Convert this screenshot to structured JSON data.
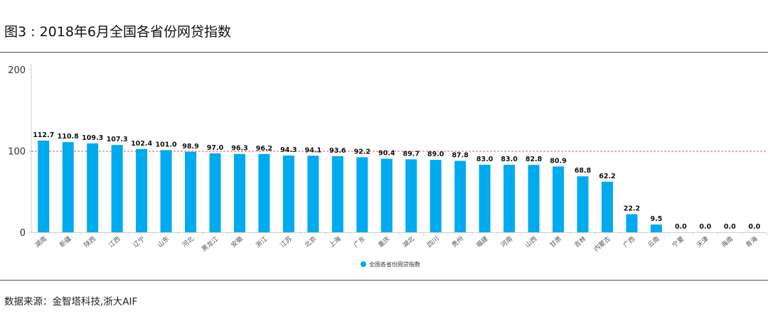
{
  "title": "图3 : 2018年6月全国各省份网贷指数",
  "source": "数据来源：金智塔科技,浙大AIF",
  "chart_data": {
    "type": "bar",
    "title": "图3 : 2018年6月全国各省份网贷指数",
    "xlabel": "",
    "ylabel": "",
    "ylim": [
      0,
      200
    ],
    "yticks": [
      "0",
      "100",
      "200"
    ],
    "reference_line": {
      "value": 100,
      "color": "#e05a5a",
      "style": "dashed"
    },
    "grid": false,
    "legend_position": "bottom-center",
    "bar_color": "#00aaef",
    "categories": [
      "湖南",
      "新疆",
      "陕西",
      "江西",
      "辽宁",
      "山东",
      "河北",
      "黑龙江",
      "安徽",
      "浙江",
      "江苏",
      "北京",
      "上海",
      "广东",
      "重庆",
      "湖北",
      "四川",
      "贵州",
      "福建",
      "河南",
      "山西",
      "甘肃",
      "吉林",
      "内蒙古",
      "广西",
      "云南",
      "宁夏",
      "天津",
      "海南",
      "青海"
    ],
    "series": [
      {
        "name": "全国各省份网贷指数",
        "values": [
          112.7,
          110.8,
          109.3,
          107.3,
          102.4,
          101.0,
          98.9,
          97.0,
          96.3,
          96.2,
          94.3,
          94.1,
          93.6,
          92.2,
          90.4,
          89.7,
          89.0,
          87.8,
          83.0,
          83.0,
          82.8,
          80.9,
          68.8,
          62.2,
          22.2,
          9.5,
          0.0,
          0.0,
          0.0,
          0.0
        ],
        "labels": [
          "112.7",
          "110.8",
          "109.3",
          "107.3",
          "102.4",
          "101.0",
          "98.9",
          "97.0",
          "96.3",
          "96.2",
          "94.3",
          "94.1",
          "93.6",
          "92.2",
          "90.4",
          "89.7",
          "89.0",
          "87.8",
          "83.0",
          "83.0",
          "82.8",
          "80.9",
          "68.8",
          "62.2",
          "22.2",
          "9.5",
          "0.0",
          "0.0",
          "0.0",
          "0.0"
        ]
      }
    ]
  }
}
